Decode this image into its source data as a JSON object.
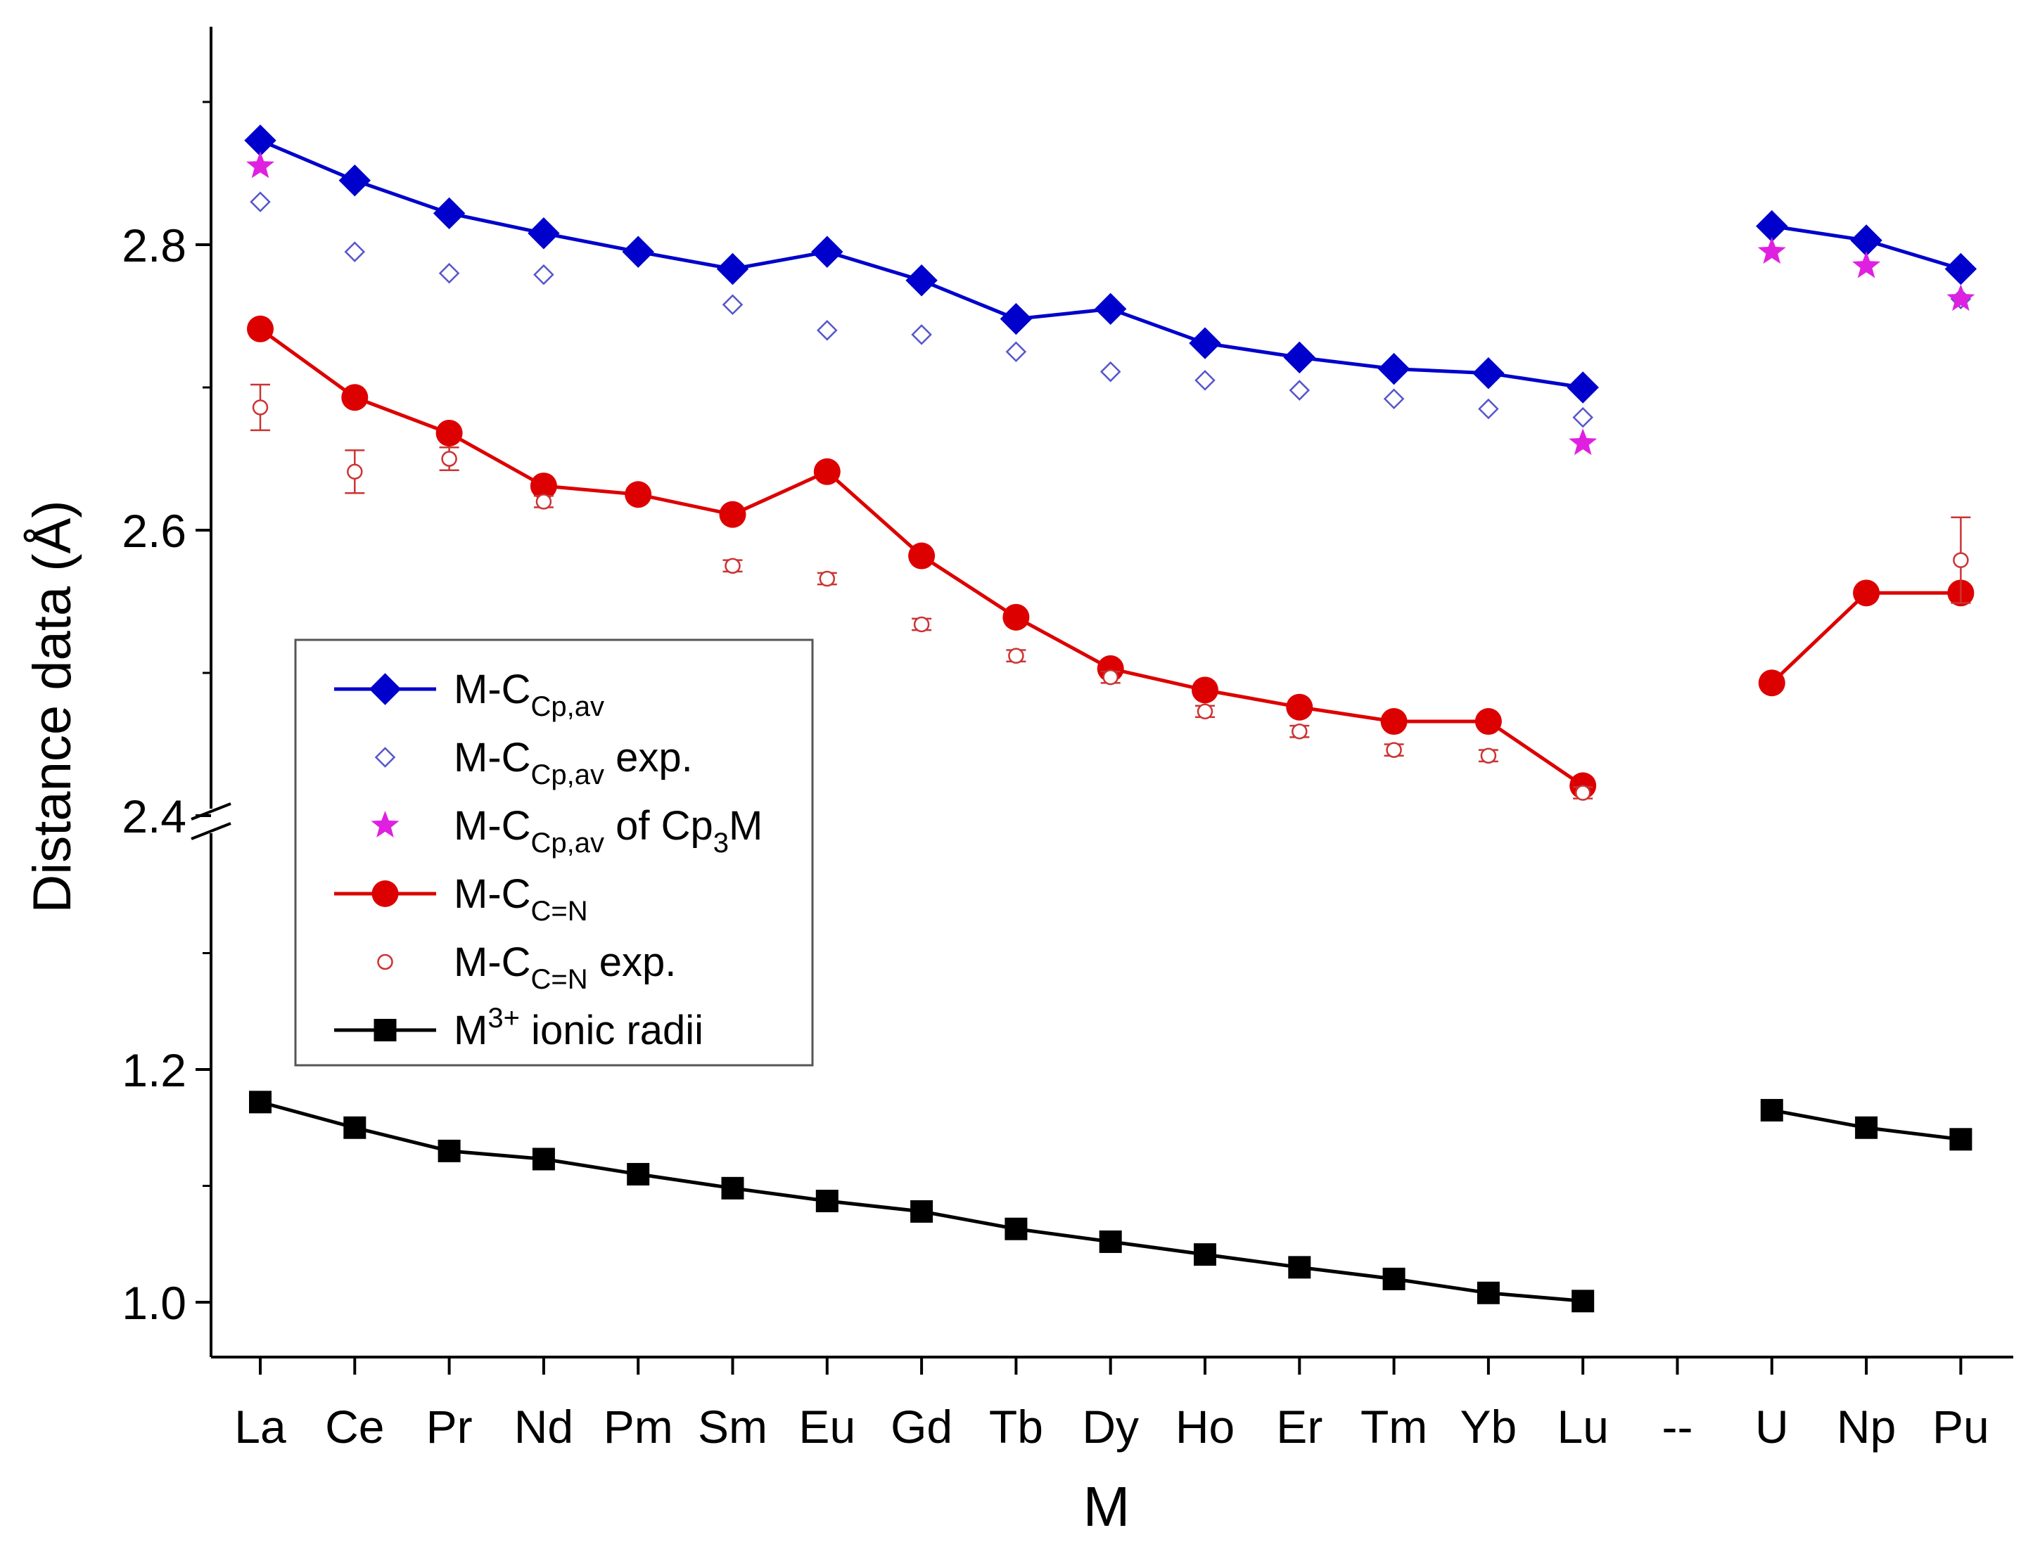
{
  "chart_data": {
    "type": "line",
    "xlabel": "M",
    "ylabel": "Distance  data (Å)",
    "categories": [
      "La",
      "Ce",
      "Pr",
      "Nd",
      "Pm",
      "Sm",
      "Eu",
      "Gd",
      "Tb",
      "Dy",
      "Ho",
      "Er",
      "Tm",
      "Yb",
      "Lu",
      "--",
      "U",
      "Np",
      "Pu"
    ],
    "y_axis_break": {
      "lower_range": [
        0.94,
        1.34
      ],
      "upper_range": [
        2.4,
        2.97
      ]
    },
    "y_ticks": [
      "1.0",
      "1.2",
      "2.4",
      "2.6",
      "2.8"
    ],
    "y_tick_values": [
      1.0,
      1.2,
      2.4,
      2.6,
      2.8
    ],
    "series": [
      {
        "name": "M-CCp,av",
        "label_main": "M-C",
        "label_sub": "Cp,av",
        "label_tail": "",
        "label_sub2": "",
        "label_end": "",
        "style": "line-filled-diamond",
        "color": "#0000cc",
        "segments": [
          [
            [
              0,
              2.873
            ],
            [
              1,
              2.845
            ],
            [
              2,
              2.822
            ],
            [
              3,
              2.808
            ],
            [
              4,
              2.795
            ],
            [
              5,
              2.783
            ],
            [
              6,
              2.795
            ],
            [
              7,
              2.775
            ],
            [
              8,
              2.748
            ],
            [
              9,
              2.755
            ],
            [
              10,
              2.731
            ],
            [
              11,
              2.721
            ],
            [
              12,
              2.713
            ],
            [
              13,
              2.71
            ],
            [
              14,
              2.7
            ]
          ],
          [
            [
              16,
              2.813
            ],
            [
              17,
              2.803
            ],
            [
              18,
              2.783
            ]
          ]
        ]
      },
      {
        "name": "M-CCp,av exp.",
        "label_main": "M-C",
        "label_sub": "Cp,av",
        "label_tail": " exp.",
        "label_sub2": "",
        "label_end": "",
        "style": "open-diamond",
        "color": "#5555cc",
        "points": [
          [
            0,
            2.83
          ],
          [
            1,
            2.795
          ],
          [
            2,
            2.78
          ],
          [
            3,
            2.779
          ],
          [
            5,
            2.758
          ],
          [
            6,
            2.74
          ],
          [
            7,
            2.737
          ],
          [
            8,
            2.725
          ],
          [
            9,
            2.711
          ],
          [
            10,
            2.705
          ],
          [
            11,
            2.698
          ],
          [
            12,
            2.692
          ],
          [
            13,
            2.685
          ],
          [
            14,
            2.679
          ],
          [
            18,
            2.762
          ]
        ]
      },
      {
        "name": "M-CCp,av of Cp3M",
        "label_main": "M-C",
        "label_sub": "Cp,av",
        "label_tail": " of Cp",
        "label_sub2": "3",
        "label_end": "M",
        "style": "star",
        "color": "#e020e0",
        "points": [
          [
            0,
            2.855
          ],
          [
            14,
            2.661
          ],
          [
            16,
            2.795
          ],
          [
            17,
            2.785
          ],
          [
            18,
            2.762
          ]
        ]
      },
      {
        "name": "M-CC=N",
        "label_main": "M-C",
        "label_sub": "C=N",
        "label_tail": "",
        "label_sub2": "",
        "label_end": "",
        "style": "line-filled-circle",
        "color": "#dd0000",
        "segments": [
          [
            [
              0,
              2.741
            ],
            [
              1,
              2.693
            ],
            [
              2,
              2.668
            ],
            [
              3,
              2.631
            ],
            [
              4,
              2.625
            ],
            [
              5,
              2.611
            ],
            [
              6,
              2.641
            ],
            [
              7,
              2.582
            ],
            [
              8,
              2.539
            ],
            [
              9,
              2.503
            ],
            [
              10,
              2.488
            ],
            [
              11,
              2.476
            ],
            [
              12,
              2.466
            ],
            [
              13,
              2.466
            ],
            [
              14,
              2.421
            ]
          ],
          [
            [
              16,
              2.493
            ],
            [
              17,
              2.556
            ],
            [
              18,
              2.556
            ]
          ]
        ]
      },
      {
        "name": "M-CC=N exp.",
        "label_main": "M-C",
        "label_sub": "C=N",
        "label_tail": " exp.",
        "label_sub2": "",
        "label_end": "",
        "style": "open-circle-errorbar",
        "color": "#cc3333",
        "points": [
          [
            0,
            2.686,
            0.016
          ],
          [
            1,
            2.641,
            0.015
          ],
          [
            2,
            2.65,
            0.008
          ],
          [
            3,
            2.62,
            0.004
          ],
          [
            5,
            2.575,
            0.004
          ],
          [
            6,
            2.566,
            0.004
          ],
          [
            7,
            2.534,
            0.004
          ],
          [
            8,
            2.512,
            0.004
          ],
          [
            9,
            2.497,
            0.004
          ],
          [
            10,
            2.473,
            0.004
          ],
          [
            11,
            2.459,
            0.004
          ],
          [
            12,
            2.446,
            0.004
          ],
          [
            13,
            2.442,
            0.004
          ],
          [
            14,
            2.416,
            0.004
          ],
          [
            18,
            2.579,
            0.03
          ]
        ]
      },
      {
        "name": "M3+ ionic radii",
        "label_main": "M",
        "label_sup": "3+",
        "label_tail": " ionic radii",
        "label_sub": "",
        "label_sub2": "",
        "label_end": "",
        "style": "line-filled-square",
        "color": "#000000",
        "segments": [
          [
            [
              0,
              1.172
            ],
            [
              1,
              1.15
            ],
            [
              2,
              1.13
            ],
            [
              3,
              1.123
            ],
            [
              4,
              1.11
            ],
            [
              5,
              1.098
            ],
            [
              6,
              1.087
            ],
            [
              7,
              1.078
            ],
            [
              8,
              1.063
            ],
            [
              9,
              1.052
            ],
            [
              10,
              1.041
            ],
            [
              11,
              1.03
            ],
            [
              12,
              1.02
            ],
            [
              13,
              1.008
            ],
            [
              14,
              1.001
            ]
          ],
          [
            [
              16,
              1.165
            ],
            [
              17,
              1.15
            ],
            [
              18,
              1.14
            ]
          ]
        ]
      }
    ],
    "legend_position": "middle-left"
  }
}
